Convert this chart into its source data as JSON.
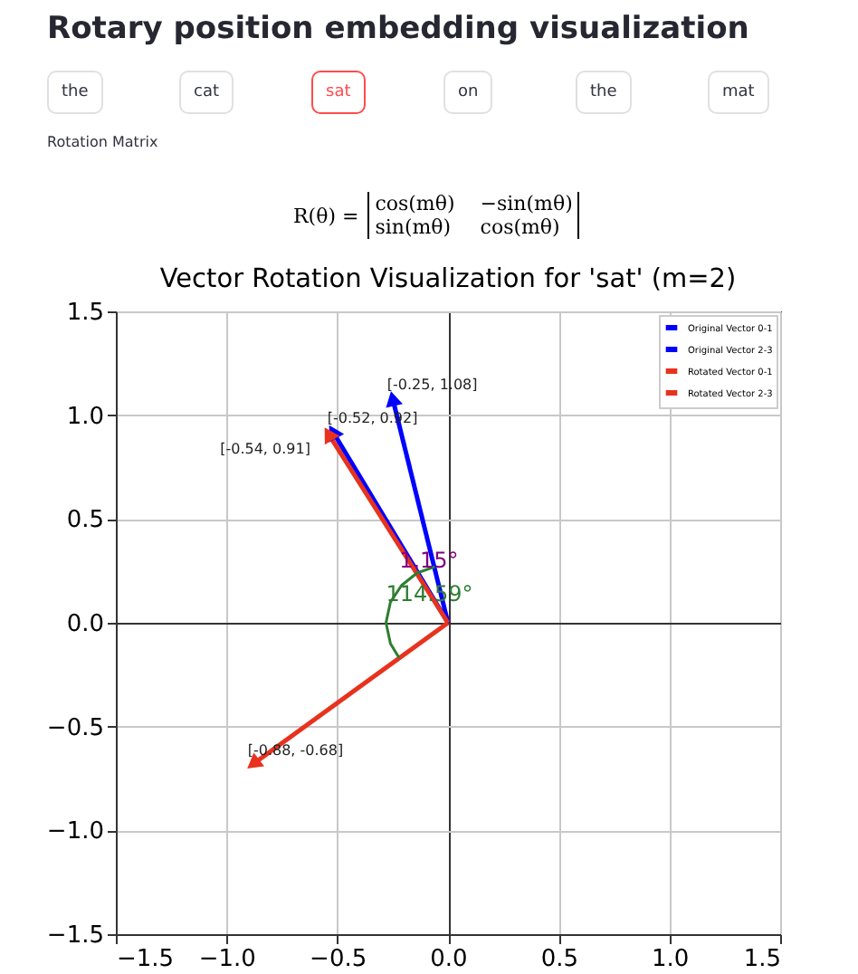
{
  "chart_data": {
    "type": "line",
    "title": "Vector Rotation Visualization for 'sat' (m=2)",
    "annotations": [
      "Rotary position embedding visualization",
      "the",
      "cat",
      "sat",
      "on",
      "the",
      "mat",
      "Rotation Matrix",
      "R(θ) =",
      "cos(mθ)",
      "−sin(mθ)",
      "sin(mθ)",
      "cos(mθ)",
      {
        "text": "1.15°",
        "x": -0.22,
        "y": 0.3
      },
      {
        "text": "114.59°",
        "x": -0.28,
        "y": 0.14
      }
    ],
    "series": [
      {
        "name": "Original Vector 0-1",
        "color": "#0000ff",
        "x": [
          0,
          -0.52
        ],
        "values": [
          0,
          0.92
        ],
        "value_labels": [
          null,
          "[-0.52, 0.92]"
        ]
      },
      {
        "name": "Original Vector 2-3",
        "color": "#0000ff",
        "x": [
          0,
          -0.25
        ],
        "values": [
          0,
          1.08
        ],
        "value_labels": [
          null,
          "[-0.25, 1.08]"
        ]
      },
      {
        "name": "Rotated Vector 0-1",
        "color": "#e8321e",
        "x": [
          0,
          -0.54
        ],
        "values": [
          0,
          0.91
        ],
        "value_labels": [
          null,
          "[-0.54, 0.91]"
        ]
      },
      {
        "name": "Rotated Vector 2-3",
        "color": "#e8321e",
        "x": [
          0,
          -0.88
        ],
        "values": [
          0,
          -0.68
        ],
        "value_labels": [
          null,
          "[-0.88, -0.68]"
        ]
      },
      {
        "color": "#2e7d32",
        "marker": "none",
        "x": [
          -0.06,
          -0.14,
          -0.21,
          -0.26,
          -0.28,
          -0.26,
          -0.22
        ],
        "values": [
          0.27,
          0.24,
          0.18,
          0.1,
          0,
          -0.1,
          -0.17
        ]
      }
    ],
    "xlim": [
      -1.5,
      1.5
    ],
    "ylim": [
      -1.5,
      1.5
    ],
    "xticks": [
      {
        "value": -1.5,
        "label": "−1.5"
      },
      {
        "value": -1,
        "label": "−1.0"
      },
      {
        "value": -0.5,
        "label": "−0.5"
      },
      {
        "value": 0,
        "label": "0.0"
      },
      {
        "value": 0.5,
        "label": "0.5"
      },
      {
        "value": 1,
        "label": "1.0"
      },
      {
        "value": 1.5,
        "label": "1.5"
      }
    ],
    "yticks": [
      {
        "value": -1.5,
        "label": "−1.5"
      },
      {
        "value": -1,
        "label": "−1.0"
      },
      {
        "value": -0.5,
        "label": "−0.5"
      },
      {
        "value": 0,
        "label": "0.0"
      },
      {
        "value": 0.5,
        "label": "0.5"
      },
      {
        "value": 1,
        "label": "1.0"
      },
      {
        "value": 1.5,
        "label": "1.5"
      }
    ],
    "grid": true,
    "legend": "top right",
    "marker": "triangle",
    "line_style": "solid"
  }
}
